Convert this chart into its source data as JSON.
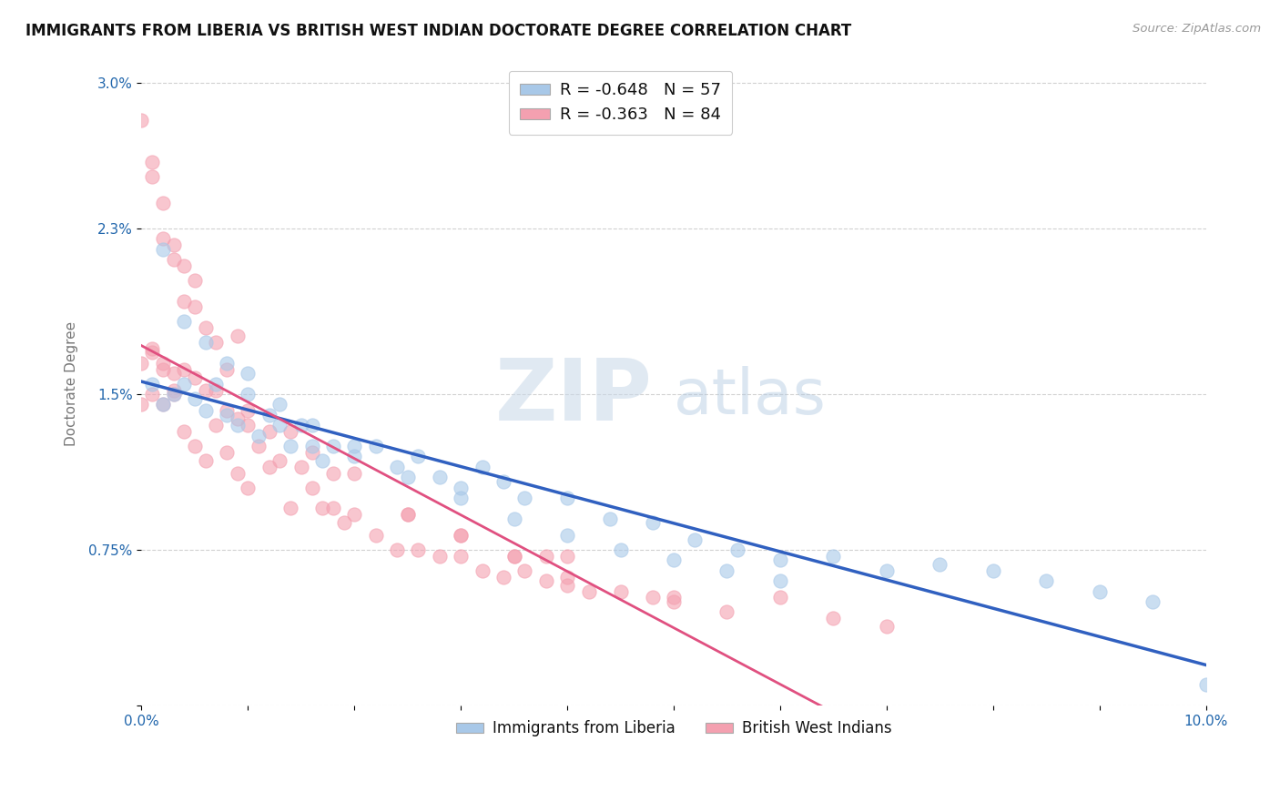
{
  "title": "IMMIGRANTS FROM LIBERIA VS BRITISH WEST INDIAN DOCTORATE DEGREE CORRELATION CHART",
  "source": "Source: ZipAtlas.com",
  "ylabel": "Doctorate Degree",
  "xlim": [
    0.0,
    0.1
  ],
  "ylim": [
    0.0,
    0.031
  ],
  "ytick_labels": [
    "",
    "0.75%",
    "1.5%",
    "2.3%",
    "3.0%"
  ],
  "ytick_positions": [
    0.0,
    0.0075,
    0.015,
    0.023,
    0.03
  ],
  "blue_R": -0.648,
  "blue_N": 57,
  "pink_R": -0.363,
  "pink_N": 84,
  "blue_color": "#a8c8e8",
  "pink_color": "#f4a0b0",
  "blue_line_color": "#3060c0",
  "pink_line_color": "#e05080",
  "watermark_zip": "ZIP",
  "watermark_atlas": "atlas",
  "legend_label_blue": "Immigrants from Liberia",
  "legend_label_pink": "British West Indians",
  "blue_scatter_x": [
    0.001,
    0.002,
    0.003,
    0.004,
    0.005,
    0.006,
    0.007,
    0.008,
    0.009,
    0.01,
    0.011,
    0.012,
    0.013,
    0.014,
    0.015,
    0.016,
    0.017,
    0.018,
    0.02,
    0.022,
    0.024,
    0.026,
    0.028,
    0.03,
    0.032,
    0.034,
    0.036,
    0.04,
    0.044,
    0.048,
    0.052,
    0.056,
    0.06,
    0.065,
    0.07,
    0.075,
    0.08,
    0.085,
    0.09,
    0.095,
    0.1,
    0.002,
    0.004,
    0.006,
    0.008,
    0.01,
    0.013,
    0.016,
    0.02,
    0.025,
    0.03,
    0.035,
    0.04,
    0.045,
    0.05,
    0.055,
    0.06
  ],
  "blue_scatter_y": [
    0.0155,
    0.0145,
    0.015,
    0.0155,
    0.0148,
    0.0142,
    0.0155,
    0.014,
    0.0135,
    0.015,
    0.013,
    0.014,
    0.0135,
    0.0125,
    0.0135,
    0.0125,
    0.0118,
    0.0125,
    0.012,
    0.0125,
    0.0115,
    0.012,
    0.011,
    0.0105,
    0.0115,
    0.0108,
    0.01,
    0.01,
    0.009,
    0.0088,
    0.008,
    0.0075,
    0.007,
    0.0072,
    0.0065,
    0.0068,
    0.0065,
    0.006,
    0.0055,
    0.005,
    0.001,
    0.022,
    0.0185,
    0.0175,
    0.0165,
    0.016,
    0.0145,
    0.0135,
    0.0125,
    0.011,
    0.01,
    0.009,
    0.0082,
    0.0075,
    0.007,
    0.0065,
    0.006
  ],
  "pink_scatter_x": [
    0.0,
    0.0,
    0.001,
    0.001,
    0.002,
    0.002,
    0.003,
    0.003,
    0.004,
    0.004,
    0.005,
    0.005,
    0.006,
    0.006,
    0.007,
    0.007,
    0.008,
    0.008,
    0.009,
    0.009,
    0.01,
    0.01,
    0.011,
    0.012,
    0.013,
    0.014,
    0.015,
    0.016,
    0.017,
    0.018,
    0.019,
    0.02,
    0.022,
    0.024,
    0.026,
    0.028,
    0.03,
    0.032,
    0.034,
    0.036,
    0.038,
    0.04,
    0.042,
    0.045,
    0.048,
    0.05,
    0.055,
    0.06,
    0.065,
    0.07,
    0.001,
    0.002,
    0.003,
    0.004,
    0.005,
    0.006,
    0.007,
    0.008,
    0.009,
    0.01,
    0.012,
    0.014,
    0.016,
    0.018,
    0.02,
    0.025,
    0.03,
    0.035,
    0.04,
    0.05,
    0.0,
    0.001,
    0.002,
    0.003,
    0.004,
    0.005,
    0.001,
    0.002,
    0.003,
    0.025,
    0.03,
    0.035,
    0.038,
    0.04
  ],
  "pink_scatter_y": [
    0.0165,
    0.0145,
    0.017,
    0.015,
    0.0165,
    0.0145,
    0.016,
    0.015,
    0.0162,
    0.0132,
    0.0158,
    0.0125,
    0.0152,
    0.0118,
    0.0152,
    0.0135,
    0.0142,
    0.0122,
    0.0138,
    0.0112,
    0.0135,
    0.0105,
    0.0125,
    0.0115,
    0.0118,
    0.0095,
    0.0115,
    0.0105,
    0.0095,
    0.0095,
    0.0088,
    0.0092,
    0.0082,
    0.0075,
    0.0075,
    0.0072,
    0.0072,
    0.0065,
    0.0062,
    0.0065,
    0.006,
    0.0058,
    0.0055,
    0.0055,
    0.0052,
    0.005,
    0.0045,
    0.0052,
    0.0042,
    0.0038,
    0.0255,
    0.0225,
    0.0215,
    0.0195,
    0.0205,
    0.0182,
    0.0175,
    0.0162,
    0.0178,
    0.0142,
    0.0132,
    0.0132,
    0.0122,
    0.0112,
    0.0112,
    0.0092,
    0.0082,
    0.0072,
    0.0072,
    0.0052,
    0.0282,
    0.0262,
    0.0242,
    0.0222,
    0.0212,
    0.0192,
    0.0172,
    0.0162,
    0.0152,
    0.0092,
    0.0082,
    0.0072,
    0.0072,
    0.0062
  ]
}
